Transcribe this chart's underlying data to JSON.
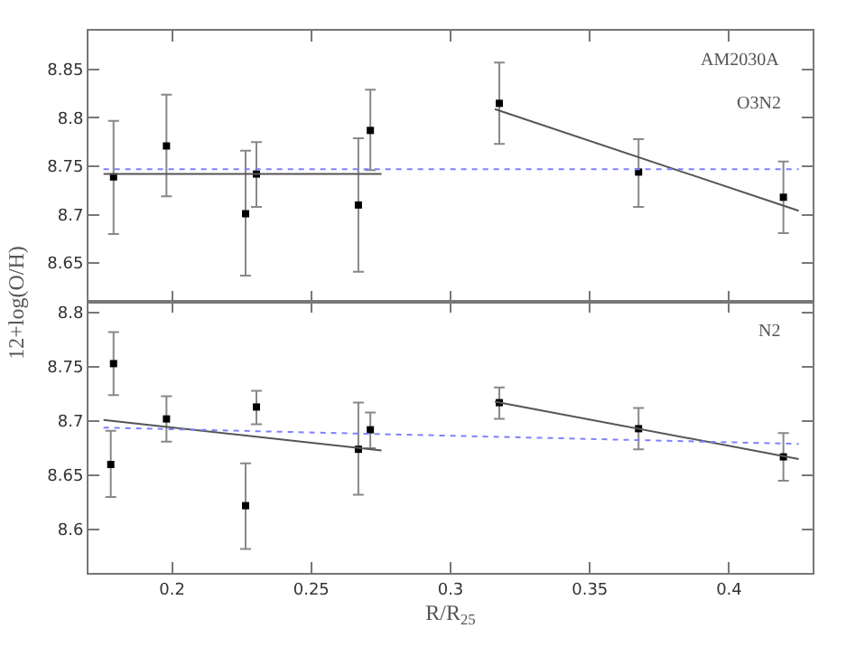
{
  "chart_data": [
    {
      "type": "scatter",
      "ylabel": "12+log(O/H)",
      "annotations": [
        "AM2030A",
        "O3N2"
      ],
      "xlim": [
        0.17,
        0.43
      ],
      "xticks": [
        0.2,
        0.25,
        0.3,
        0.35,
        0.4
      ],
      "ylim": [
        8.61,
        8.89
      ],
      "yticks": [
        8.65,
        8.7,
        8.75,
        8.8,
        8.85
      ],
      "tick_labels": "y",
      "line_style": "solid",
      "series": [
        {
          "marker": "square",
          "color": "#000000",
          "x": [
            0.179,
            0.198,
            0.2264,
            0.2303,
            0.2669,
            0.2712,
            0.3175,
            0.3675,
            0.4195
          ],
          "values": [
            8.739,
            8.771,
            8.701,
            8.742,
            8.71,
            8.787,
            8.815,
            8.744,
            8.718
          ],
          "errors": [
            [
              8.68,
              8.797
            ],
            [
              8.719,
              8.824
            ],
            [
              8.637,
              8.766
            ],
            [
              8.708,
              8.775
            ],
            [
              8.641,
              8.779
            ],
            [
              8.746,
              8.829
            ],
            [
              8.773,
              8.857
            ],
            [
              8.708,
              8.778
            ],
            [
              8.681,
              8.755
            ]
          ]
        },
        {
          "type": "line",
          "color": "#555555",
          "x": [
            0.1754,
            0.2752
          ],
          "values": [
            8.742,
            8.742
          ]
        },
        {
          "type": "line",
          "color": "#555555",
          "x": [
            0.3159,
            0.425
          ],
          "values": [
            8.809,
            8.704
          ]
        },
        {
          "type": "line",
          "color": "#8080ff",
          "line_style": "dotted",
          "x": [
            0.1754,
            0.425
          ],
          "values": [
            8.747,
            8.747
          ]
        }
      ]
    },
    {
      "type": "scatter",
      "xlabel": "R/R$_{25}$",
      "annotations": [
        "N2"
      ],
      "xlim": [
        0.17,
        0.43
      ],
      "xticks": [
        0.2,
        0.25,
        0.3,
        0.35,
        0.4
      ],
      "ylim": [
        8.56,
        8.81
      ],
      "yticks": [
        8.6,
        8.65,
        8.7,
        8.75,
        8.8
      ],
      "line_style": "solid",
      "series": [
        {
          "marker": "square",
          "color": "#000000",
          "x": [
            0.179,
            0.178,
            0.198,
            0.2264,
            0.2303,
            0.2669,
            0.2712,
            0.3175,
            0.3675,
            0.4195
          ],
          "values": [
            8.753,
            8.66,
            8.702,
            8.622,
            8.713,
            8.674,
            8.692,
            8.717,
            8.693,
            8.667
          ],
          "errors": [
            [
              8.724,
              8.782
            ],
            [
              8.63,
              8.691
            ],
            [
              8.681,
              8.723
            ],
            [
              8.582,
              8.661
            ],
            [
              8.697,
              8.728
            ],
            [
              8.632,
              8.717
            ],
            [
              8.675,
              8.708
            ],
            [
              8.702,
              8.731
            ],
            [
              8.674,
              8.712
            ],
            [
              8.645,
              8.689
            ]
          ]
        },
        {
          "type": "line",
          "color": "#555555",
          "x": [
            0.1754,
            0.2752
          ],
          "values": [
            8.701,
            8.673
          ]
        },
        {
          "type": "line",
          "color": "#555555",
          "x": [
            0.3159,
            0.425
          ],
          "values": [
            8.718,
            8.665
          ]
        },
        {
          "type": "line",
          "color": "#8080ff",
          "line_style": "dotted",
          "x": [
            0.1754,
            0.425
          ],
          "values": [
            8.694,
            8.679
          ]
        }
      ]
    }
  ]
}
